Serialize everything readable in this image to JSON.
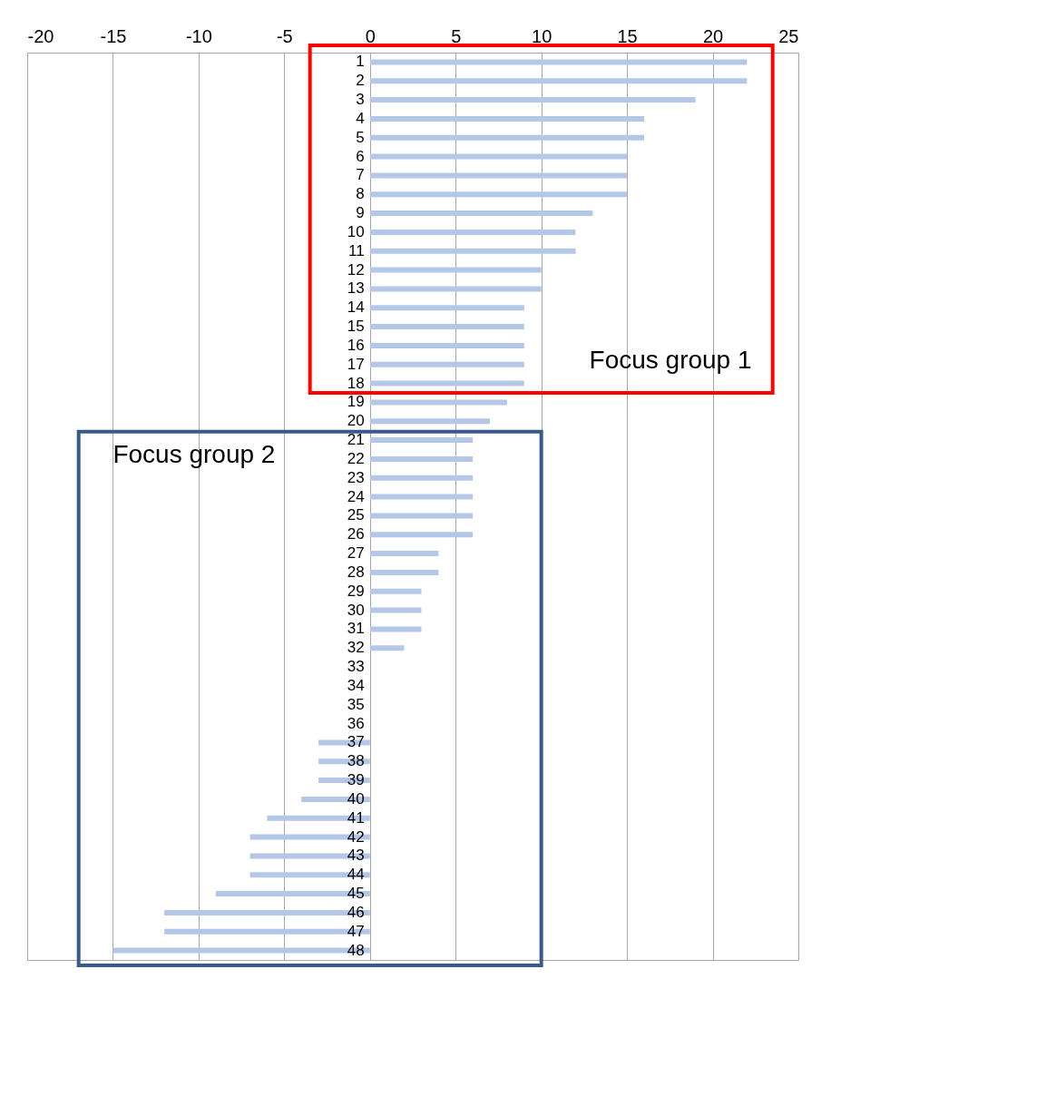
{
  "chart_data": {
    "type": "bar",
    "orientation": "horizontal",
    "categories": [
      "1",
      "2",
      "3",
      "4",
      "5",
      "6",
      "7",
      "8",
      "9",
      "10",
      "11",
      "12",
      "13",
      "14",
      "15",
      "16",
      "17",
      "18",
      "19",
      "20",
      "21",
      "22",
      "23",
      "24",
      "25",
      "26",
      "27",
      "28",
      "29",
      "30",
      "31",
      "32",
      "33",
      "34",
      "35",
      "36",
      "37",
      "38",
      "39",
      "40",
      "41",
      "42",
      "43",
      "44",
      "45",
      "46",
      "47",
      "48"
    ],
    "values": [
      22,
      22,
      19,
      16,
      16,
      15,
      15,
      15,
      13,
      12,
      12,
      10,
      10,
      9,
      9,
      9,
      9,
      9,
      8,
      7,
      6,
      6,
      6,
      6,
      6,
      6,
      4,
      4,
      3,
      3,
      3,
      2,
      0,
      0,
      0,
      0,
      -3,
      -3,
      -3,
      -4,
      -6,
      -7,
      -7,
      -7,
      -9,
      -12,
      -12,
      -15
    ],
    "color": "#b4c7e7",
    "xlim": [
      -20,
      25
    ],
    "xticks": [
      -20,
      -15,
      -10,
      -5,
      0,
      5,
      10,
      15,
      20,
      25
    ],
    "grid": "x",
    "annotations": [
      "Focus group 1",
      "Focus group 2"
    ]
  }
}
